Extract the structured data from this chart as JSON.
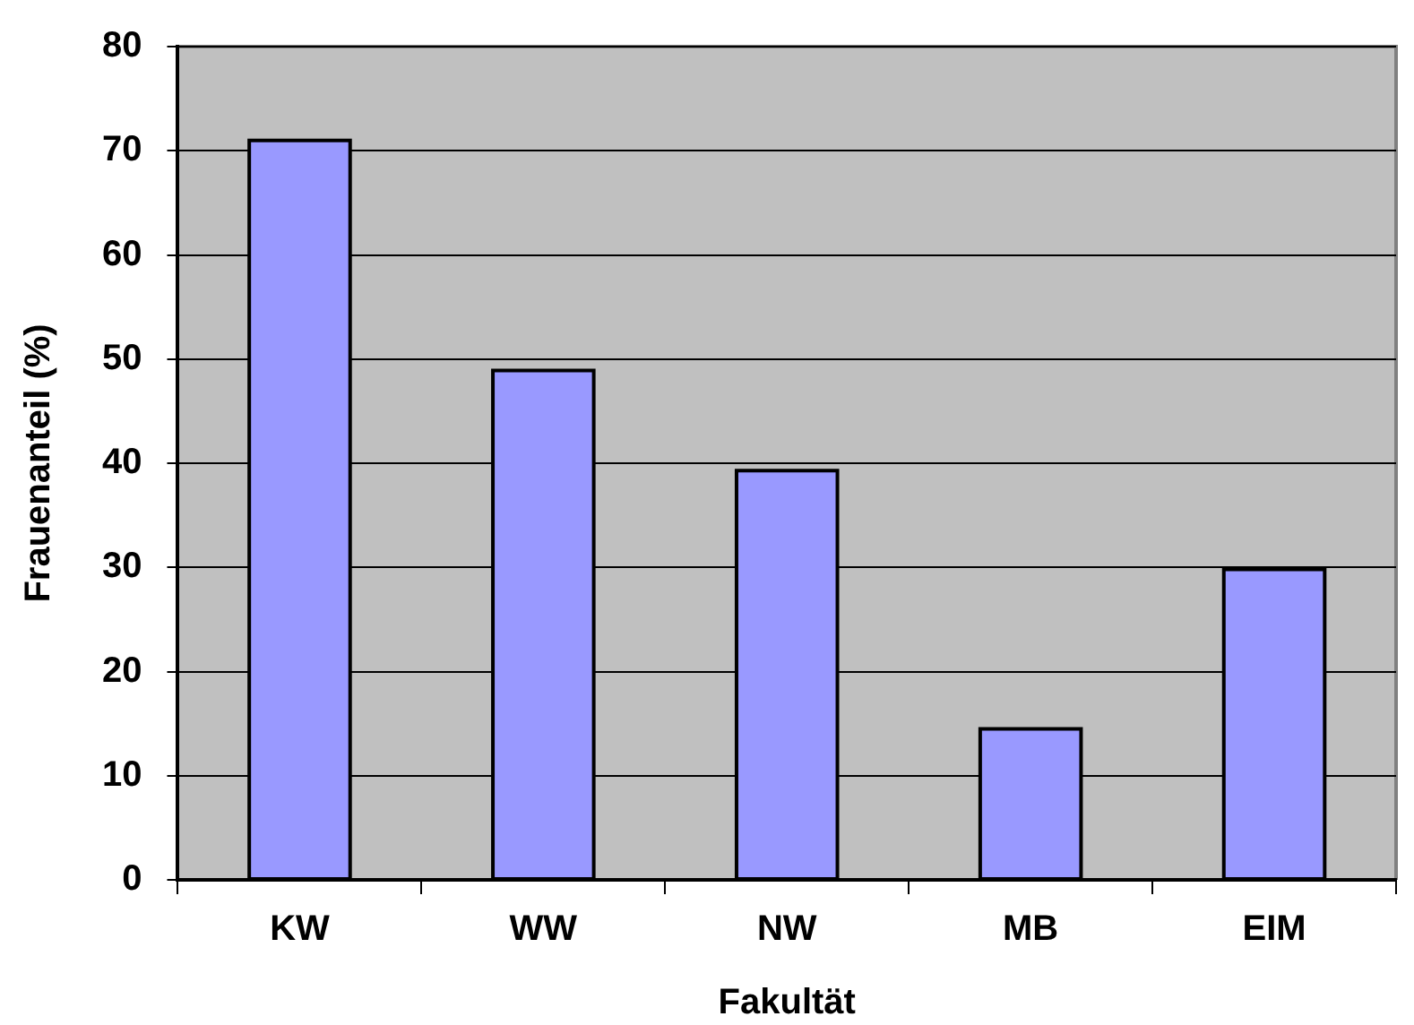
{
  "chart_data": {
    "type": "bar",
    "xlabel": "Fakultät",
    "ylabel": "Frauenanteil (%)",
    "categories": [
      "KW",
      "WW",
      "NW",
      "MB",
      "EIM"
    ],
    "values": [
      71.0,
      48.9,
      39.3,
      14.5,
      29.8
    ],
    "color": "#9999ff",
    "ylim": [
      0,
      80
    ],
    "yticks": [
      0,
      10,
      20,
      30,
      40,
      50,
      60,
      70,
      80
    ],
    "grid": "y",
    "legend": false
  }
}
